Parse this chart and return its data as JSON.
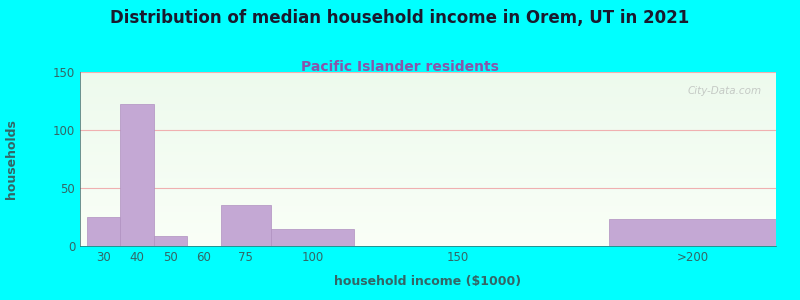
{
  "title": "Distribution of median household income in Orem, UT in 2021",
  "subtitle": "Pacific Islander residents",
  "xlabel": "household income ($1000)",
  "ylabel": "households",
  "background_color": "#00FFFF",
  "bar_color": "#c4a8d4",
  "bar_edge_color": "#b090c0",
  "title_color": "#1a1a2e",
  "subtitle_color": "#8855aa",
  "axis_label_color": "#336666",
  "tick_color": "#336666",
  "grid_color": "#f0b0b0",
  "watermark": "City-Data.com",
  "categories": [
    "30",
    "40",
    "50",
    "60",
    "75",
    "100",
    "150",
    ">200"
  ],
  "values": [
    25,
    122,
    9,
    0,
    35,
    15,
    0,
    23
  ],
  "bar_lefts": [
    22,
    32,
    42,
    52,
    62,
    77,
    108,
    178
  ],
  "bar_widths": [
    10,
    10,
    10,
    10,
    15,
    25,
    50,
    50
  ],
  "tick_positions": [
    27,
    37,
    47,
    57,
    69.5,
    89.5,
    133,
    203
  ],
  "xlim": [
    20,
    228
  ],
  "ylim": [
    0,
    150
  ],
  "yticks": [
    0,
    50,
    100,
    150
  ],
  "title_fontsize": 12,
  "subtitle_fontsize": 10,
  "axis_label_fontsize": 9,
  "tick_fontsize": 8.5,
  "ylabel_fontsize": 9
}
